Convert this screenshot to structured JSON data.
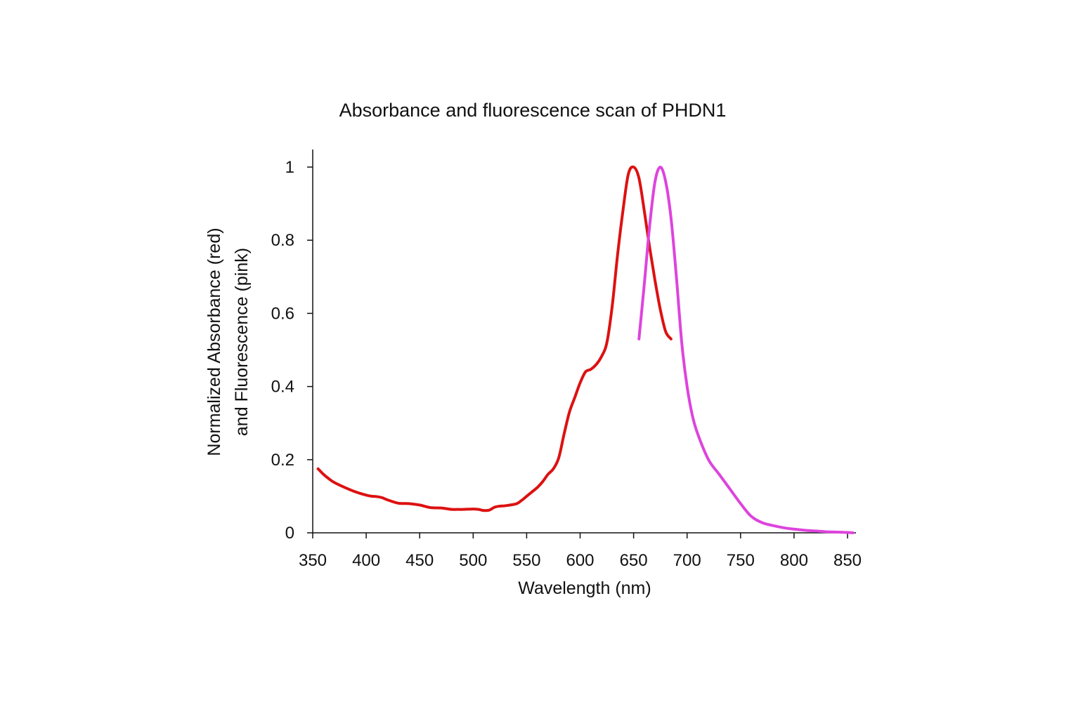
{
  "chart_data": {
    "type": "line",
    "title": "Absorbance and fluorescence scan of PHDN1",
    "xlabel": "Wavelength (nm)",
    "ylabel": [
      "Normalized Absorbance (red)",
      "and Fluorescence (pink)"
    ],
    "xlim": [
      350,
      850
    ],
    "ylim": [
      0,
      1
    ],
    "xticks": [
      "350",
      "400",
      "450",
      "500",
      "550",
      "600",
      "650",
      "700",
      "750",
      "800",
      "850"
    ],
    "yticks": [
      "0",
      "0.2",
      "0.4",
      "0.6",
      "0.8",
      "1"
    ],
    "grid": false,
    "legend": "none",
    "series": [
      {
        "color": "#dd1111",
        "x": [
          355,
          360,
          365,
          370,
          380,
          390,
          400,
          405,
          410,
          415,
          420,
          430,
          440,
          450,
          460,
          470,
          475,
          480,
          485,
          490,
          500,
          505,
          510,
          515,
          520,
          525,
          530,
          540,
          545,
          550,
          555,
          560,
          565,
          570,
          575,
          580,
          585,
          590,
          595,
          600,
          605,
          610,
          615,
          620,
          625,
          630,
          635,
          640,
          645,
          650,
          655,
          660,
          665,
          670,
          675,
          680,
          685
        ],
        "y": [
          0.175,
          0.16,
          0.148,
          0.138,
          0.124,
          0.112,
          0.103,
          0.1,
          0.099,
          0.096,
          0.09,
          0.081,
          0.08,
          0.076,
          0.069,
          0.068,
          0.066,
          0.064,
          0.064,
          0.064,
          0.065,
          0.064,
          0.061,
          0.062,
          0.07,
          0.073,
          0.074,
          0.079,
          0.088,
          0.1,
          0.112,
          0.124,
          0.14,
          0.16,
          0.175,
          0.205,
          0.27,
          0.33,
          0.37,
          0.41,
          0.44,
          0.447,
          0.46,
          0.482,
          0.52,
          0.62,
          0.76,
          0.88,
          0.98,
          1.0,
          0.97,
          0.88,
          0.78,
          0.69,
          0.61,
          0.55,
          0.53
        ]
      },
      {
        "color": "#dd44dd",
        "x": [
          655,
          660,
          665,
          670,
          675,
          680,
          685,
          690,
          695,
          700,
          705,
          710,
          720,
          730,
          740,
          750,
          760,
          770,
          780,
          790,
          800,
          810,
          820,
          830,
          840,
          850,
          855
        ],
        "y": [
          0.53,
          0.68,
          0.84,
          0.96,
          1.0,
          0.96,
          0.86,
          0.7,
          0.52,
          0.4,
          0.32,
          0.27,
          0.2,
          0.16,
          0.12,
          0.08,
          0.045,
          0.028,
          0.02,
          0.014,
          0.01,
          0.007,
          0.005,
          0.003,
          0.002,
          0.001,
          0.0
        ]
      }
    ]
  }
}
